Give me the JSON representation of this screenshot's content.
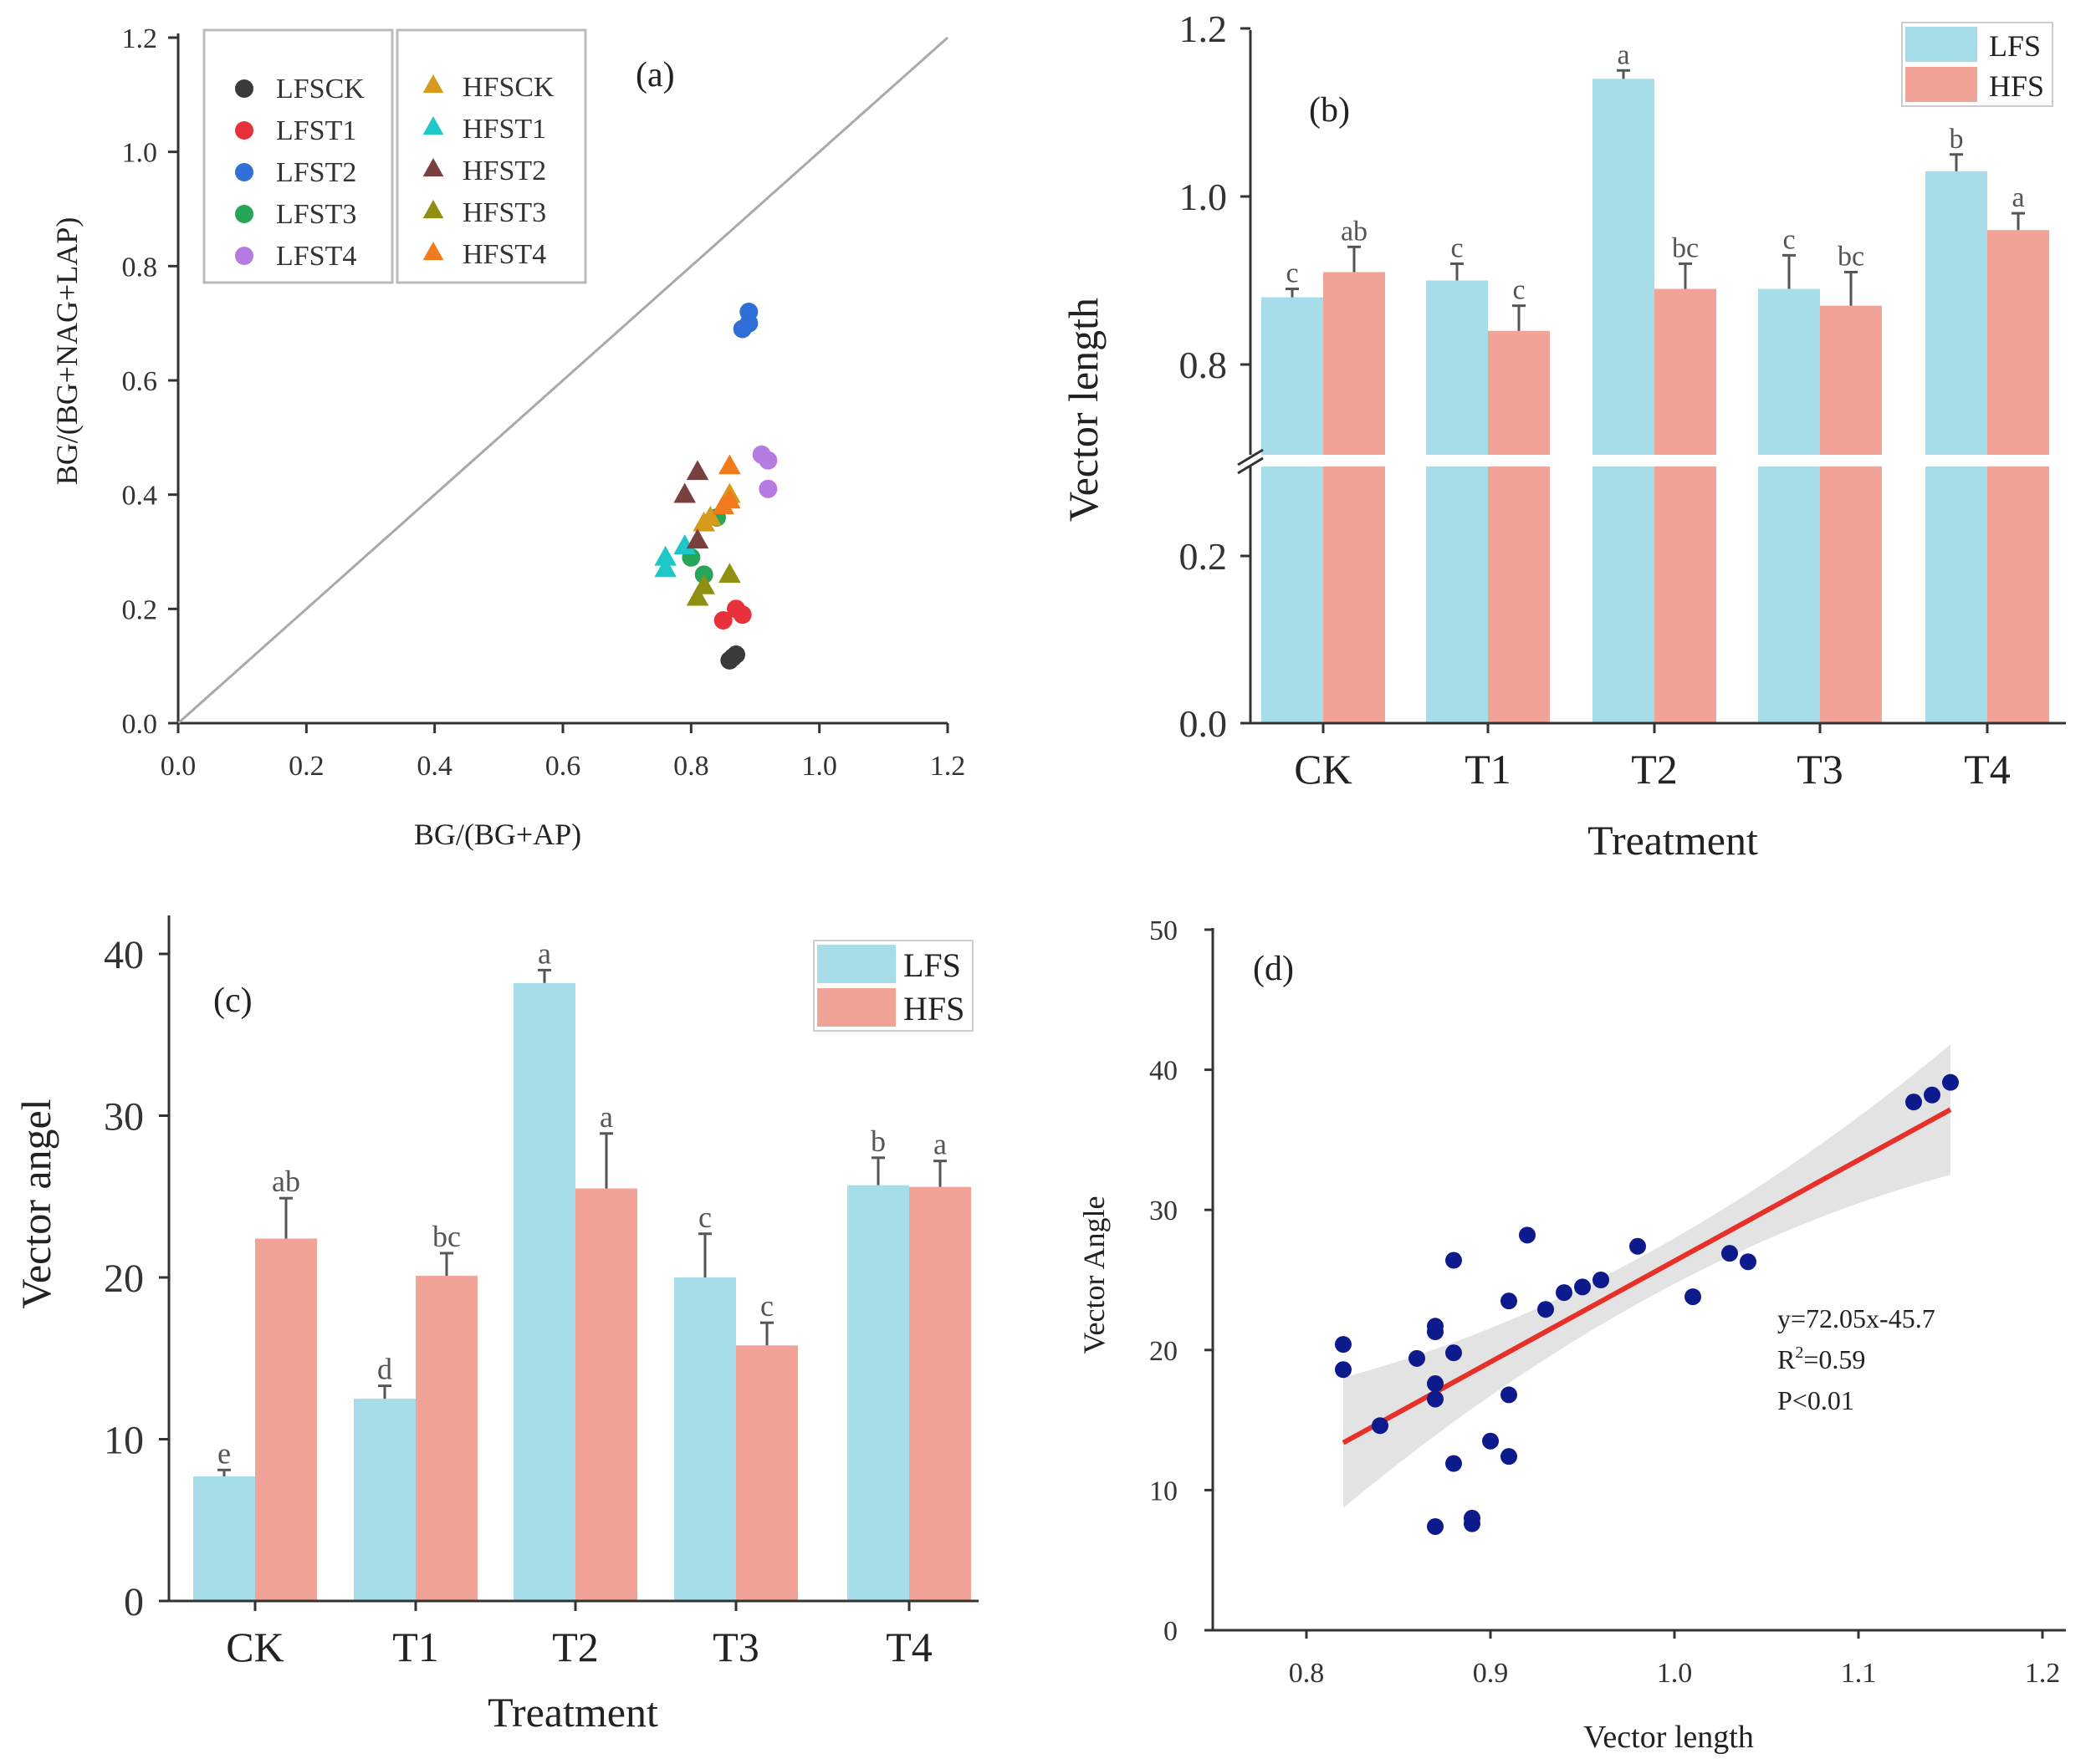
{
  "colors": {
    "lfs": "#a6dde8",
    "hfs": "#f2a397",
    "fit": "#e8302a",
    "band": "#e3e3e3",
    "dot": "#0d1a8c",
    "axis": "#333333"
  },
  "chart_data": [
    {
      "id": "a",
      "type": "scatter",
      "panel_label": "(a)",
      "xlabel": "BG/(BG+AP)",
      "ylabel": "BG/(BG+NAG+LAP)",
      "xlim": [
        0,
        1.2
      ],
      "ylim": [
        0,
        1.2
      ],
      "xticks": [
        "0.0",
        "0.2",
        "0.4",
        "0.6",
        "0.8",
        "1.0",
        "1.2"
      ],
      "yticks": [
        "0.0",
        "0.2",
        "0.4",
        "0.6",
        "0.8",
        "1.0",
        "1.2"
      ],
      "reference_line": "1:1",
      "legend": {
        "location": "top-left",
        "left_column": [
          {
            "label": "LFSCK",
            "marker": "circle",
            "color": "#3a3a3a"
          },
          {
            "label": "LFST1",
            "marker": "circle",
            "color": "#e8313a"
          },
          {
            "label": "LFST2",
            "marker": "circle",
            "color": "#2f6fd6"
          },
          {
            "label": "LFST3",
            "marker": "circle",
            "color": "#27a65a"
          },
          {
            "label": "LFST4",
            "marker": "circle",
            "color": "#b57be0"
          }
        ],
        "right_column": [
          {
            "label": "HFSCK",
            "marker": "triangle",
            "color": "#d69a1c"
          },
          {
            "label": "HFST1",
            "marker": "triangle",
            "color": "#1ec8c8"
          },
          {
            "label": "HFST2",
            "marker": "triangle",
            "color": "#7a4040"
          },
          {
            "label": "HFST3",
            "marker": "triangle",
            "color": "#8f8f12"
          },
          {
            "label": "HFST4",
            "marker": "triangle",
            "color": "#f07a1c"
          }
        ]
      },
      "series": [
        {
          "name": "LFSCK",
          "marker": "circle",
          "color": "#3a3a3a",
          "points": [
            [
              0.86,
              0.11
            ],
            [
              0.87,
              0.12
            ],
            [
              0.865,
              0.115
            ]
          ]
        },
        {
          "name": "LFST1",
          "marker": "circle",
          "color": "#e8313a",
          "points": [
            [
              0.85,
              0.18
            ],
            [
              0.87,
              0.2
            ],
            [
              0.88,
              0.19
            ]
          ]
        },
        {
          "name": "LFST2",
          "marker": "circle",
          "color": "#2f6fd6",
          "points": [
            [
              0.89,
              0.72
            ],
            [
              0.89,
              0.7
            ],
            [
              0.88,
              0.69
            ]
          ]
        },
        {
          "name": "LFST3",
          "marker": "circle",
          "color": "#27a65a",
          "points": [
            [
              0.8,
              0.29
            ],
            [
              0.82,
              0.26
            ],
            [
              0.84,
              0.36
            ]
          ]
        },
        {
          "name": "LFST4",
          "marker": "circle",
          "color": "#b57be0",
          "points": [
            [
              0.91,
              0.47
            ],
            [
              0.92,
              0.46
            ],
            [
              0.92,
              0.41
            ]
          ]
        },
        {
          "name": "HFSCK",
          "marker": "triangle",
          "color": "#d69a1c",
          "points": [
            [
              0.82,
              0.35
            ],
            [
              0.86,
              0.4
            ],
            [
              0.83,
              0.36
            ]
          ]
        },
        {
          "name": "HFST1",
          "marker": "triangle",
          "color": "#1ec8c8",
          "points": [
            [
              0.76,
              0.29
            ],
            [
              0.76,
              0.27
            ],
            [
              0.79,
              0.31
            ]
          ]
        },
        {
          "name": "HFST2",
          "marker": "triangle",
          "color": "#7a4040",
          "points": [
            [
              0.81,
              0.44
            ],
            [
              0.79,
              0.4
            ],
            [
              0.81,
              0.32
            ]
          ]
        },
        {
          "name": "HFST3",
          "marker": "triangle",
          "color": "#8f8f12",
          "points": [
            [
              0.81,
              0.22
            ],
            [
              0.82,
              0.24
            ],
            [
              0.86,
              0.26
            ]
          ]
        },
        {
          "name": "HFST4",
          "marker": "triangle",
          "color": "#f07a1c",
          "points": [
            [
              0.86,
              0.45
            ],
            [
              0.86,
              0.39
            ],
            [
              0.85,
              0.38
            ]
          ]
        }
      ]
    },
    {
      "id": "b",
      "type": "bar",
      "panel_label": "(b)",
      "xlabel": "Treatment",
      "ylabel": "Vector  length",
      "categories": [
        "CK",
        "T1",
        "T2",
        "T3",
        "T4"
      ],
      "axis_break": {
        "lower": [
          0,
          0.3
        ],
        "upper": [
          0.7,
          1.2
        ]
      },
      "yticks_lower": [
        "0.0",
        "0.2"
      ],
      "yticks_upper": [
        "0.8",
        "1.0",
        "1.2"
      ],
      "legend": {
        "location": "top-right",
        "entries": [
          "LFS",
          "HFS"
        ]
      },
      "series": [
        {
          "name": "LFS",
          "values": [
            0.88,
            0.9,
            1.14,
            0.89,
            1.03
          ],
          "errors": [
            0.01,
            0.02,
            0.01,
            0.04,
            0.02
          ],
          "letters": [
            "c",
            "c",
            "a",
            "c",
            "b"
          ]
        },
        {
          "name": "HFS",
          "values": [
            0.91,
            0.84,
            0.89,
            0.87,
            0.96
          ],
          "errors": [
            0.03,
            0.03,
            0.03,
            0.04,
            0.02
          ],
          "letters": [
            "ab",
            "c",
            "bc",
            "bc",
            "a"
          ]
        }
      ]
    },
    {
      "id": "c",
      "type": "bar",
      "panel_label": "(c)",
      "xlabel": "Treatment",
      "ylabel": "Vector  angel",
      "categories": [
        "CK",
        "T1",
        "T2",
        "T3",
        "T4"
      ],
      "ylim": [
        0,
        42
      ],
      "yticks": [
        "0",
        "10",
        "20",
        "30",
        "40"
      ],
      "legend": {
        "location": "top-right",
        "entries": [
          "LFS",
          "HFS"
        ]
      },
      "series": [
        {
          "name": "LFS",
          "values": [
            7.7,
            12.5,
            38.2,
            20.0,
            25.7
          ],
          "errors": [
            0.4,
            0.8,
            0.8,
            2.7,
            1.7
          ],
          "letters": [
            "e",
            "d",
            "a",
            "c",
            "b"
          ]
        },
        {
          "name": "HFS",
          "values": [
            22.4,
            20.1,
            25.5,
            15.8,
            25.6
          ],
          "errors": [
            2.5,
            1.4,
            3.4,
            1.4,
            1.6
          ],
          "letters": [
            "ab",
            "bc",
            "a",
            "c",
            "a"
          ]
        }
      ]
    },
    {
      "id": "d",
      "type": "scatter",
      "panel_label": "(d)",
      "xlabel": "Vector length",
      "ylabel": "Vector  Angle",
      "xlim": [
        0.75,
        1.2
      ],
      "ylim": [
        0,
        50
      ],
      "xticks": [
        "0.8",
        "0.9",
        "1.0",
        "1.1",
        "1.2"
      ],
      "yticks": [
        "0",
        "10",
        "20",
        "30",
        "40",
        "50"
      ],
      "fit": {
        "slope": 72.05,
        "intercept": -45.7,
        "x_range": [
          0.82,
          1.15
        ]
      },
      "annotation": {
        "equation": "y=72.05x-45.7",
        "r2_prefix": "R",
        "r2_sup": "2",
        "r2_value": "=0.59",
        "p": "P<0.01"
      },
      "points": [
        [
          0.82,
          20.4
        ],
        [
          0.82,
          18.6
        ],
        [
          0.84,
          14.6
        ],
        [
          0.86,
          19.4
        ],
        [
          0.87,
          21.7
        ],
        [
          0.87,
          21.3
        ],
        [
          0.87,
          17.6
        ],
        [
          0.87,
          16.5
        ],
        [
          0.87,
          7.4
        ],
        [
          0.88,
          26.4
        ],
        [
          0.88,
          19.8
        ],
        [
          0.88,
          11.9
        ],
        [
          0.89,
          8.0
        ],
        [
          0.89,
          7.6
        ],
        [
          0.9,
          13.5
        ],
        [
          0.91,
          23.5
        ],
        [
          0.91,
          16.8
        ],
        [
          0.91,
          12.4
        ],
        [
          0.92,
          28.2
        ],
        [
          0.93,
          22.9
        ],
        [
          0.94,
          24.1
        ],
        [
          0.95,
          24.5
        ],
        [
          0.96,
          25.0
        ],
        [
          0.98,
          27.4
        ],
        [
          1.01,
          23.8
        ],
        [
          1.03,
          26.9
        ],
        [
          1.04,
          26.3
        ],
        [
          1.13,
          37.7
        ],
        [
          1.14,
          38.2
        ],
        [
          1.15,
          39.1
        ]
      ]
    }
  ]
}
